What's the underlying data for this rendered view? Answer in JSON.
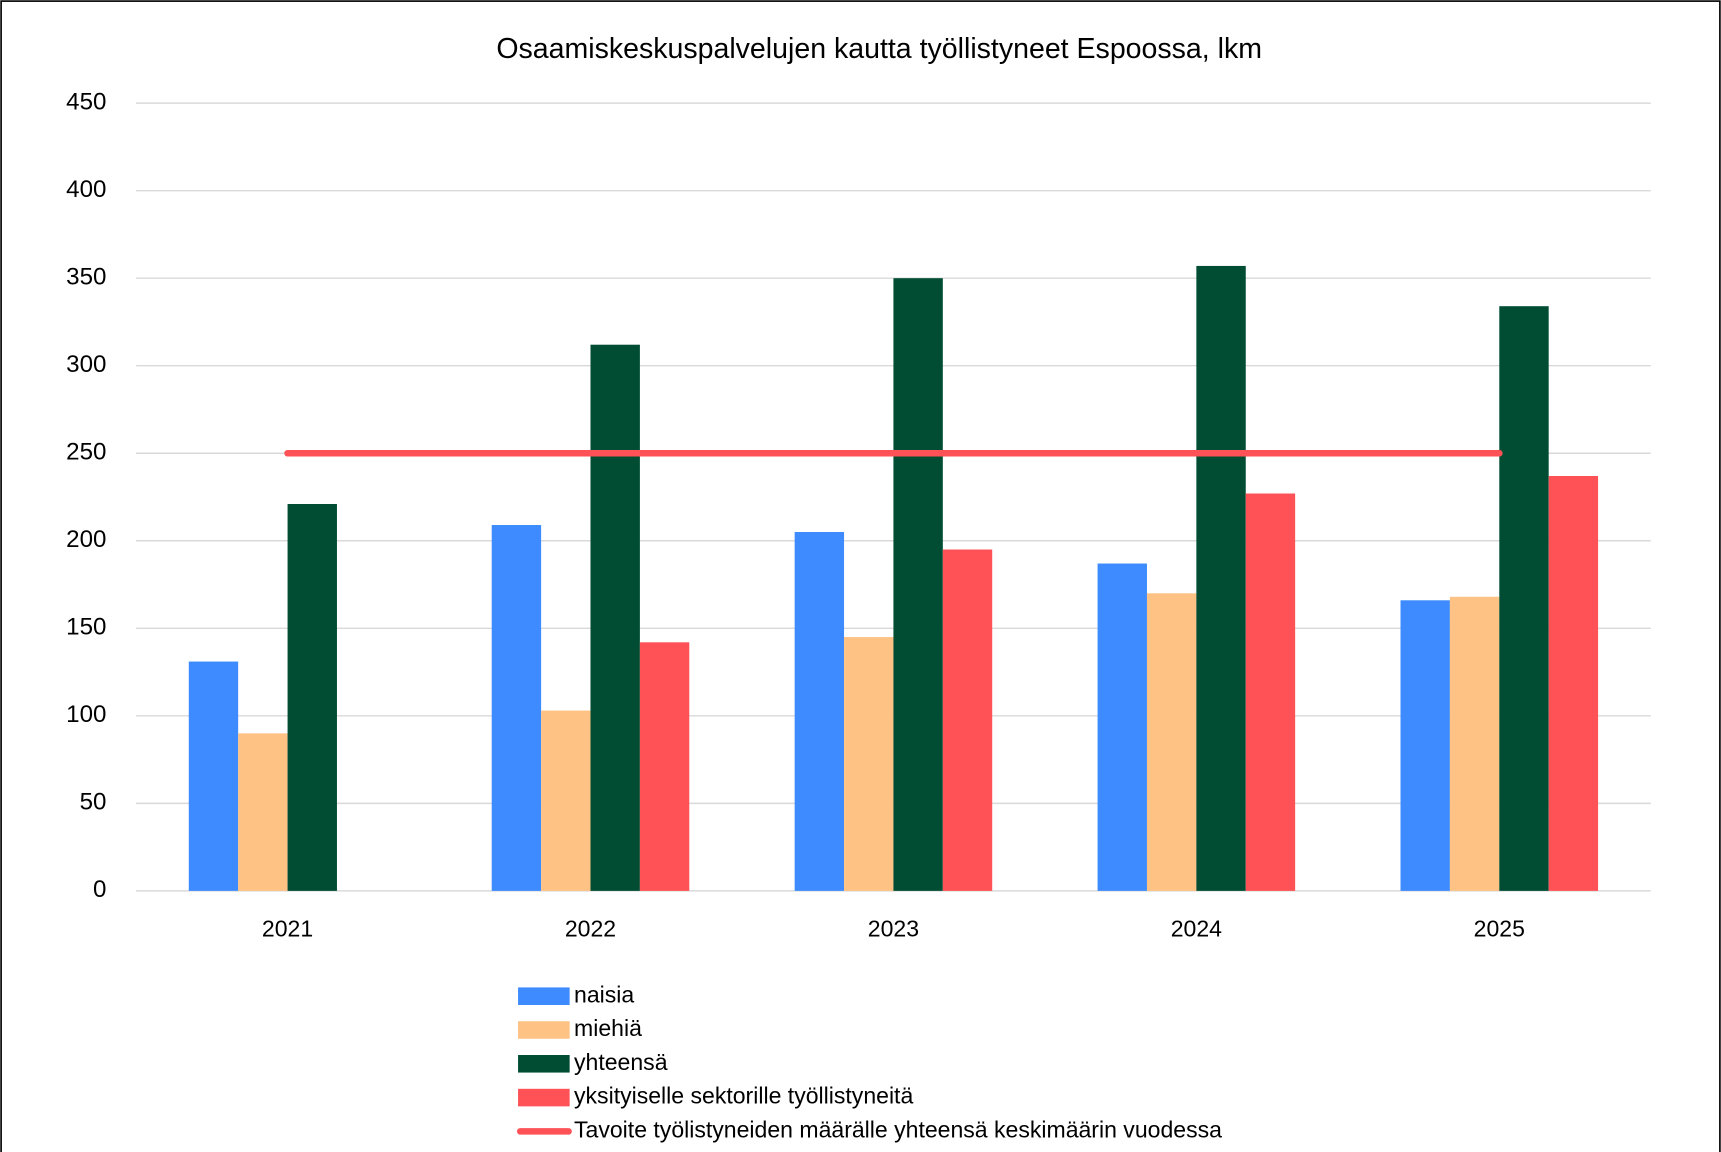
{
  "chart_data": {
    "type": "bar",
    "title": "Osaamiskeskuspalvelujen kautta työllistyneet Espoossa, lkm",
    "categories": [
      "2021",
      "2022",
      "2023",
      "2024",
      "2025"
    ],
    "series": [
      {
        "name": "naisia",
        "color": "#3d8bff",
        "values": [
          131,
          209,
          205,
          187,
          166
        ]
      },
      {
        "name": "miehiä",
        "color": "#ffc285",
        "values": [
          90,
          103,
          145,
          170,
          168
        ]
      },
      {
        "name": "yhteensä",
        "color": "#004d33",
        "values": [
          221,
          312,
          350,
          357,
          334
        ]
      },
      {
        "name": "yksityiselle sektorille työllistyneitä",
        "color": "#ff5257",
        "values": [
          null,
          142,
          195,
          227,
          237
        ]
      },
      {
        "name": "Tavoite työlistyneiden määrälle yhteensä keskimäärin vuodessa",
        "color": "#ff5257",
        "type": "line",
        "values": [
          250,
          250,
          250,
          250,
          250
        ]
      }
    ],
    "ylim": [
      0,
      450
    ],
    "yticks": [
      0,
      50,
      100,
      150,
      200,
      250,
      300,
      350,
      400,
      450
    ],
    "grid": true,
    "legend": "bottom"
  }
}
